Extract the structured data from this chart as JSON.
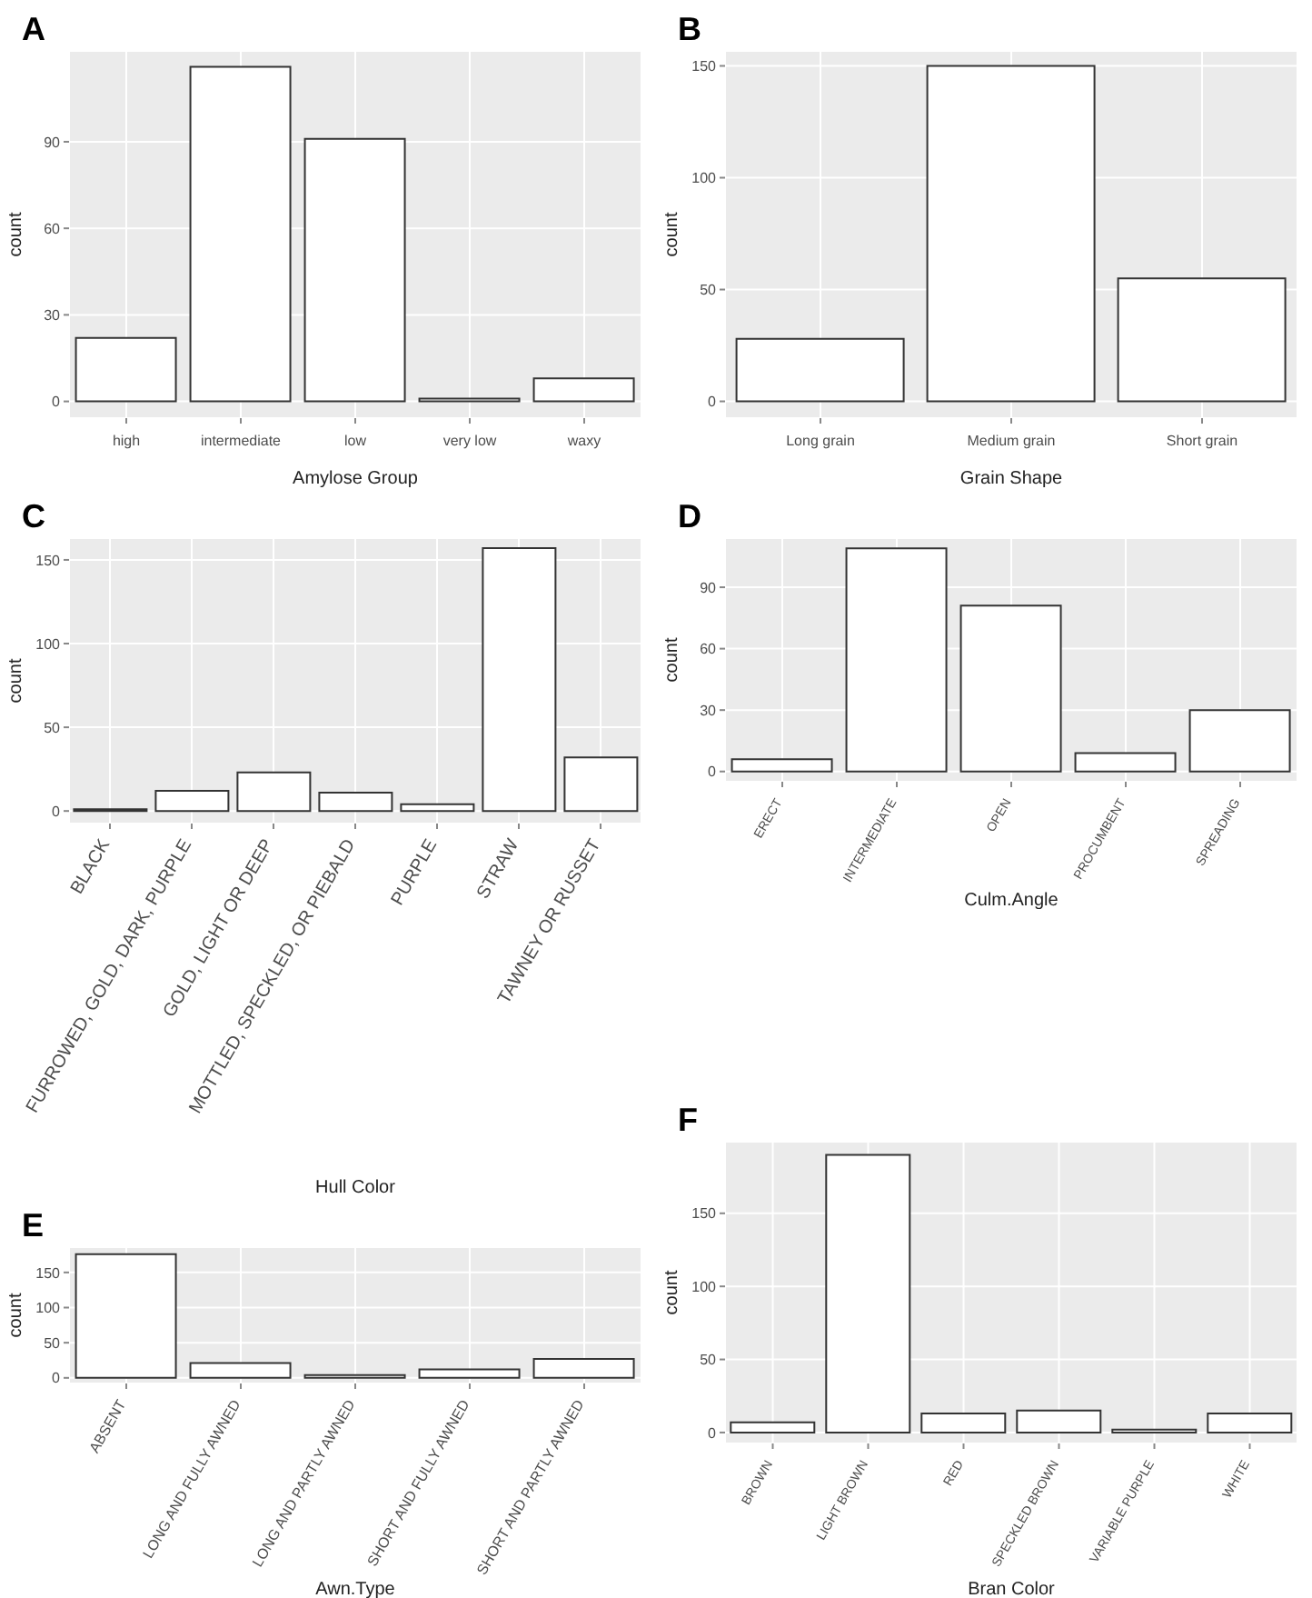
{
  "chart_data": [
    {
      "type": "bar",
      "title": "A",
      "xlabel": "Amylose Group",
      "ylabel": "count",
      "categories": [
        "high",
        "intermediate",
        "low",
        "very low",
        "waxy"
      ],
      "values": [
        22,
        116,
        91,
        1,
        8
      ],
      "color": "#ffffff",
      "ylim": [
        -5.8,
        121.5
      ],
      "yticks": [
        0,
        30,
        60,
        90
      ],
      "grid": true
    },
    {
      "type": "bar",
      "title": "B",
      "xlabel": "Grain Shape",
      "ylabel": "count",
      "categories": [
        "Long grain",
        "Medium grain",
        "Short grain"
      ],
      "values": [
        28,
        150,
        55
      ],
      "color": "#ffffff",
      "ylim": [
        -7.5,
        156.7
      ],
      "yticks": [
        0,
        50,
        100,
        150
      ],
      "grid": true
    },
    {
      "type": "bar",
      "title": "C",
      "xlabel": "Hull Color",
      "ylabel": "count",
      "categories": [
        "BLACK",
        "FURROWED, GOLD, DARK, PURPLE",
        "GOLD, LIGHT OR DEEP",
        "MOTTLED, SPECKLED, OR PIEBALD",
        "PURPLE",
        "STRAW",
        "TAWNEY OR RUSSET"
      ],
      "values": [
        1,
        12,
        23,
        11,
        4,
        157,
        32
      ],
      "color": "#ffffff",
      "ylim": [
        -7.5,
        163
      ],
      "yticks": [
        0,
        50,
        100,
        150
      ],
      "grid": true
    },
    {
      "type": "bar",
      "title": "D",
      "xlabel": "Culm.Angle",
      "ylabel": "count",
      "categories": [
        "ERECT",
        "INTERMEDIATE",
        "OPEN",
        "PROCUMBENT",
        "SPREADING"
      ],
      "values": [
        6,
        109,
        81,
        9,
        30
      ],
      "color": "#ffffff",
      "ylim": [
        -5,
        114
      ],
      "yticks": [
        0,
        30,
        60,
        90
      ],
      "grid": true
    },
    {
      "type": "bar",
      "title": "E",
      "xlabel": "Awn.Type",
      "ylabel": "count",
      "categories": [
        "ABSENT",
        "LONG AND FULLY AWNED",
        "LONG AND PARTLY AWNED",
        "SHORT AND FULLY AWNED",
        "SHORT AND PARTLY AWNED"
      ],
      "values": [
        176,
        21,
        4,
        12,
        27
      ],
      "color": "#ffffff",
      "ylim": [
        -8,
        186
      ],
      "yticks": [
        0,
        50,
        100,
        150
      ],
      "grid": true
    },
    {
      "type": "bar",
      "title": "F",
      "xlabel": "Bran Color",
      "ylabel": "count",
      "categories": [
        "BROWN",
        "LIGHT BROWN",
        "RED",
        "SPECKLED BROWN",
        "VARIABLE PURPLE",
        "WHITE"
      ],
      "values": [
        7,
        190,
        13,
        15,
        2,
        13
      ],
      "color": "#ffffff",
      "ylim": [
        -7.5,
        199
      ],
      "yticks": [
        0,
        50,
        100,
        150
      ],
      "grid": true
    }
  ]
}
